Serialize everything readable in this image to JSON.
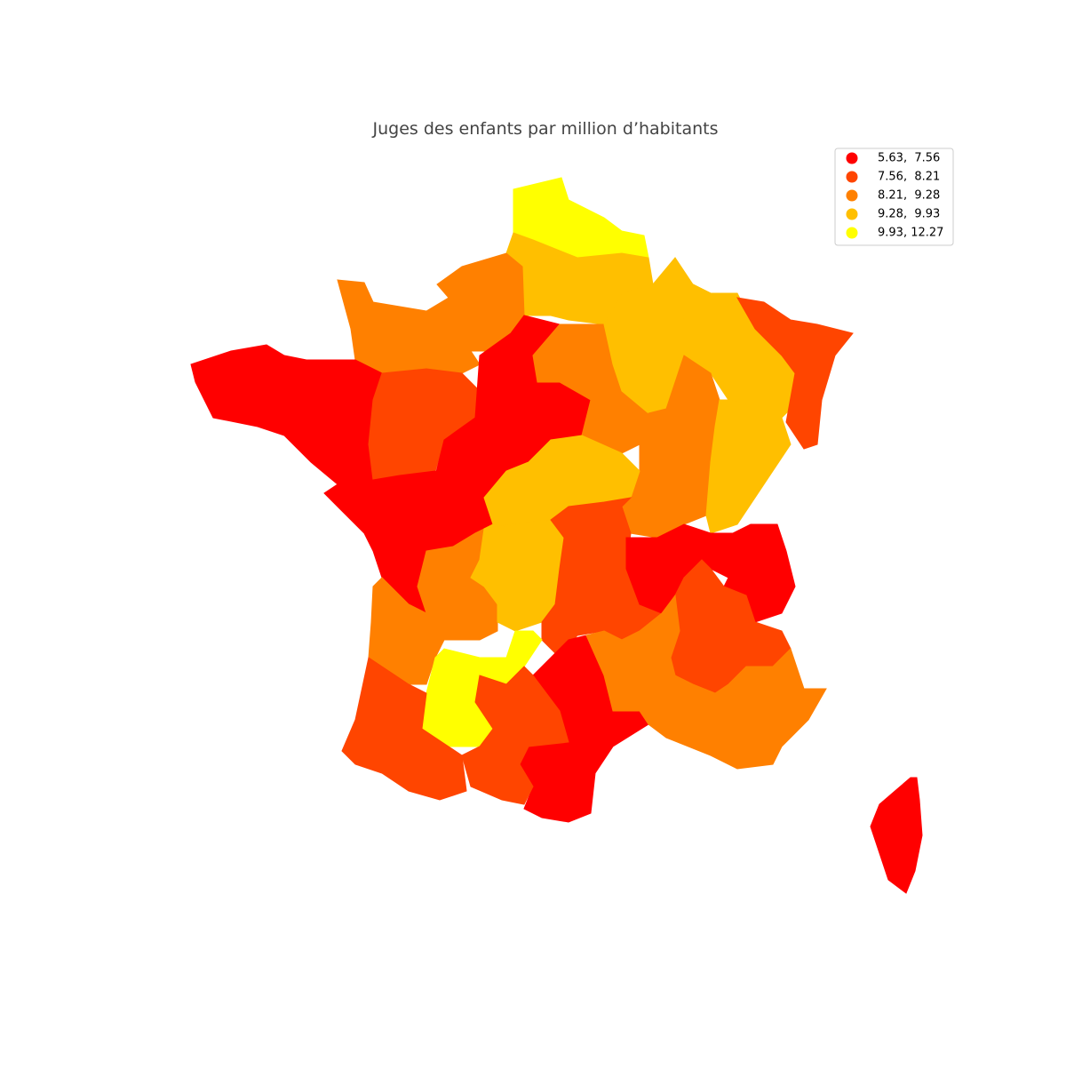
{
  "title": "Juges des enfants par million d’habitants",
  "legend": {
    "items": [
      {
        "label": "5.63,  7.56",
        "color": "#ff0000"
      },
      {
        "label": "7.56,  8.21",
        "color": "#ff4500"
      },
      {
        "label": "8.21,  9.28",
        "color": "#ff8000"
      },
      {
        "label": "9.28,  9.93",
        "color": "#ffbf00"
      },
      {
        "label": "9.93, 12.27",
        "color": "#ffff00"
      }
    ]
  }
}
